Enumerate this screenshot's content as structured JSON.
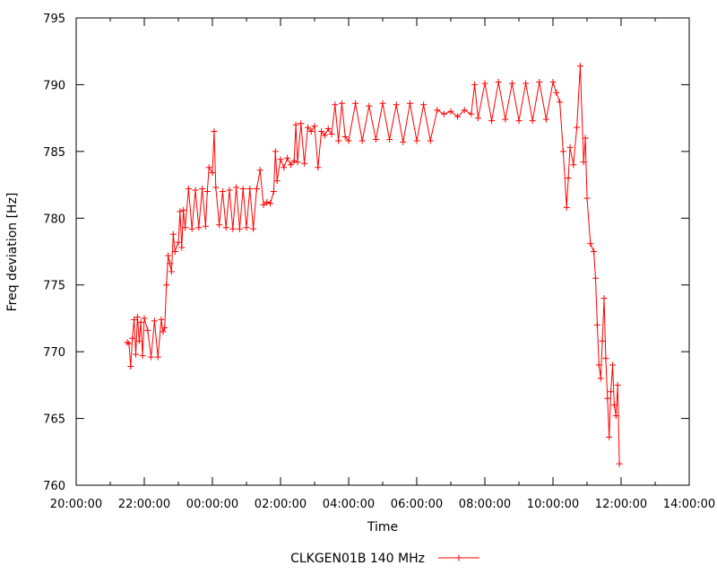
{
  "chart_data": {
    "type": "line",
    "xlabel": "Time",
    "ylabel": "Freq deviation [Hz]",
    "xlim_hours": [
      20,
      38
    ],
    "ylim": [
      760,
      795
    ],
    "xticks": [
      {
        "h": 20,
        "label": "20:00:00"
      },
      {
        "h": 22,
        "label": "22:00:00"
      },
      {
        "h": 24,
        "label": "00:00:00"
      },
      {
        "h": 26,
        "label": "02:00:00"
      },
      {
        "h": 28,
        "label": "04:00:00"
      },
      {
        "h": 30,
        "label": "06:00:00"
      },
      {
        "h": 32,
        "label": "08:00:00"
      },
      {
        "h": 34,
        "label": "10:00:00"
      },
      {
        "h": 36,
        "label": "12:00:00"
      },
      {
        "h": 38,
        "label": "14:00:00"
      }
    ],
    "yticks": [
      760,
      765,
      770,
      775,
      780,
      785,
      790,
      795
    ],
    "legend_position": "bottom",
    "series": [
      {
        "name": "CLKGEN01B 140 MHz",
        "color": "#ff0000",
        "marker": "plus",
        "points": [
          [
            21.5,
            770.7
          ],
          [
            21.55,
            770.6
          ],
          [
            21.6,
            768.9
          ],
          [
            21.65,
            771.0
          ],
          [
            21.7,
            772.4
          ],
          [
            21.75,
            769.8
          ],
          [
            21.8,
            772.6
          ],
          [
            21.85,
            770.8
          ],
          [
            21.9,
            772.2
          ],
          [
            21.95,
            769.7
          ],
          [
            22.0,
            772.5
          ],
          [
            22.1,
            771.6
          ],
          [
            22.2,
            769.6
          ],
          [
            22.3,
            772.3
          ],
          [
            22.4,
            769.6
          ],
          [
            22.5,
            772.4
          ],
          [
            22.55,
            771.5
          ],
          [
            22.6,
            771.8
          ],
          [
            22.65,
            775.0
          ],
          [
            22.7,
            777.2
          ],
          [
            22.75,
            776.6
          ],
          [
            22.8,
            776.0
          ],
          [
            22.85,
            778.8
          ],
          [
            22.9,
            777.5
          ],
          [
            23.0,
            778.2
          ],
          [
            23.05,
            780.5
          ],
          [
            23.1,
            777.8
          ],
          [
            23.15,
            780.6
          ],
          [
            23.2,
            779.3
          ],
          [
            23.3,
            782.2
          ],
          [
            23.4,
            779.2
          ],
          [
            23.5,
            782.1
          ],
          [
            23.6,
            779.3
          ],
          [
            23.7,
            782.2
          ],
          [
            23.8,
            779.4
          ],
          [
            23.85,
            782.0
          ],
          [
            23.9,
            783.8
          ],
          [
            24.0,
            783.4
          ],
          [
            24.05,
            786.5
          ],
          [
            24.1,
            782.3
          ],
          [
            24.2,
            779.5
          ],
          [
            24.3,
            782.0
          ],
          [
            24.4,
            779.3
          ],
          [
            24.5,
            782.1
          ],
          [
            24.6,
            779.2
          ],
          [
            24.7,
            782.3
          ],
          [
            24.8,
            779.2
          ],
          [
            24.9,
            782.2
          ],
          [
            25.0,
            779.3
          ],
          [
            25.1,
            782.2
          ],
          [
            25.2,
            779.2
          ],
          [
            25.3,
            782.2
          ],
          [
            25.4,
            783.6
          ],
          [
            25.5,
            781.0
          ],
          [
            25.6,
            781.2
          ],
          [
            25.7,
            781.1
          ],
          [
            25.8,
            782.0
          ],
          [
            25.85,
            785.0
          ],
          [
            25.9,
            782.8
          ],
          [
            26.0,
            784.4
          ],
          [
            26.1,
            783.8
          ],
          [
            26.2,
            784.5
          ],
          [
            26.3,
            784.0
          ],
          [
            26.4,
            784.3
          ],
          [
            26.45,
            787.0
          ],
          [
            26.5,
            784.2
          ],
          [
            26.6,
            787.1
          ],
          [
            26.7,
            784.1
          ],
          [
            26.8,
            786.8
          ],
          [
            26.9,
            786.5
          ],
          [
            27.0,
            786.9
          ],
          [
            27.1,
            783.8
          ],
          [
            27.2,
            786.5
          ],
          [
            27.3,
            786.2
          ],
          [
            27.4,
            786.7
          ],
          [
            27.5,
            786.3
          ],
          [
            27.6,
            788.5
          ],
          [
            27.7,
            785.8
          ],
          [
            27.8,
            788.6
          ],
          [
            27.9,
            786.1
          ],
          [
            28.0,
            785.8
          ],
          [
            28.2,
            788.6
          ],
          [
            28.4,
            785.8
          ],
          [
            28.6,
            788.4
          ],
          [
            28.8,
            785.9
          ],
          [
            29.0,
            788.6
          ],
          [
            29.2,
            785.9
          ],
          [
            29.4,
            788.5
          ],
          [
            29.6,
            785.7
          ],
          [
            29.8,
            788.6
          ],
          [
            30.0,
            785.8
          ],
          [
            30.2,
            788.5
          ],
          [
            30.4,
            785.8
          ],
          [
            30.6,
            788.1
          ],
          [
            30.8,
            787.8
          ],
          [
            31.0,
            788.0
          ],
          [
            31.2,
            787.6
          ],
          [
            31.4,
            788.1
          ],
          [
            31.6,
            787.8
          ],
          [
            31.7,
            790.0
          ],
          [
            31.8,
            787.5
          ],
          [
            32.0,
            790.1
          ],
          [
            32.2,
            787.3
          ],
          [
            32.4,
            790.2
          ],
          [
            32.6,
            787.4
          ],
          [
            32.8,
            790.1
          ],
          [
            33.0,
            787.3
          ],
          [
            33.2,
            790.1
          ],
          [
            33.4,
            787.3
          ],
          [
            33.6,
            790.2
          ],
          [
            33.8,
            787.4
          ],
          [
            34.0,
            790.2
          ],
          [
            34.1,
            789.4
          ],
          [
            34.2,
            788.7
          ],
          [
            34.3,
            785.0
          ],
          [
            34.4,
            780.8
          ],
          [
            34.45,
            783.0
          ],
          [
            34.5,
            785.3
          ],
          [
            34.6,
            784.0
          ],
          [
            34.7,
            786.8
          ],
          [
            34.8,
            791.4
          ],
          [
            34.9,
            784.2
          ],
          [
            34.95,
            786.0
          ],
          [
            35.0,
            781.5
          ],
          [
            35.1,
            778.1
          ],
          [
            35.2,
            777.5
          ],
          [
            35.25,
            775.5
          ],
          [
            35.3,
            772.0
          ],
          [
            35.35,
            769.0
          ],
          [
            35.4,
            768.0
          ],
          [
            35.45,
            770.8
          ],
          [
            35.5,
            774.0
          ],
          [
            35.55,
            769.5
          ],
          [
            35.6,
            766.5
          ],
          [
            35.65,
            763.6
          ],
          [
            35.7,
            767.0
          ],
          [
            35.75,
            769.0
          ],
          [
            35.8,
            766.0
          ],
          [
            35.85,
            765.2
          ],
          [
            35.9,
            767.5
          ],
          [
            35.95,
            761.6
          ]
        ]
      }
    ]
  }
}
